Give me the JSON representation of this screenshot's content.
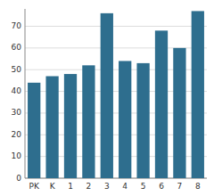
{
  "chart_data": {
    "type": "bar",
    "categories": [
      "PK",
      "K",
      "1",
      "2",
      "3",
      "4",
      "5",
      "6",
      "7",
      "8"
    ],
    "values": [
      44,
      47,
      48,
      52,
      76,
      54,
      53,
      68,
      60,
      77
    ],
    "color": "#2e6e8e",
    "ylim": [
      0,
      78
    ],
    "yticks": [
      0,
      10,
      20,
      30,
      40,
      50,
      60,
      70
    ],
    "grid": true
  }
}
